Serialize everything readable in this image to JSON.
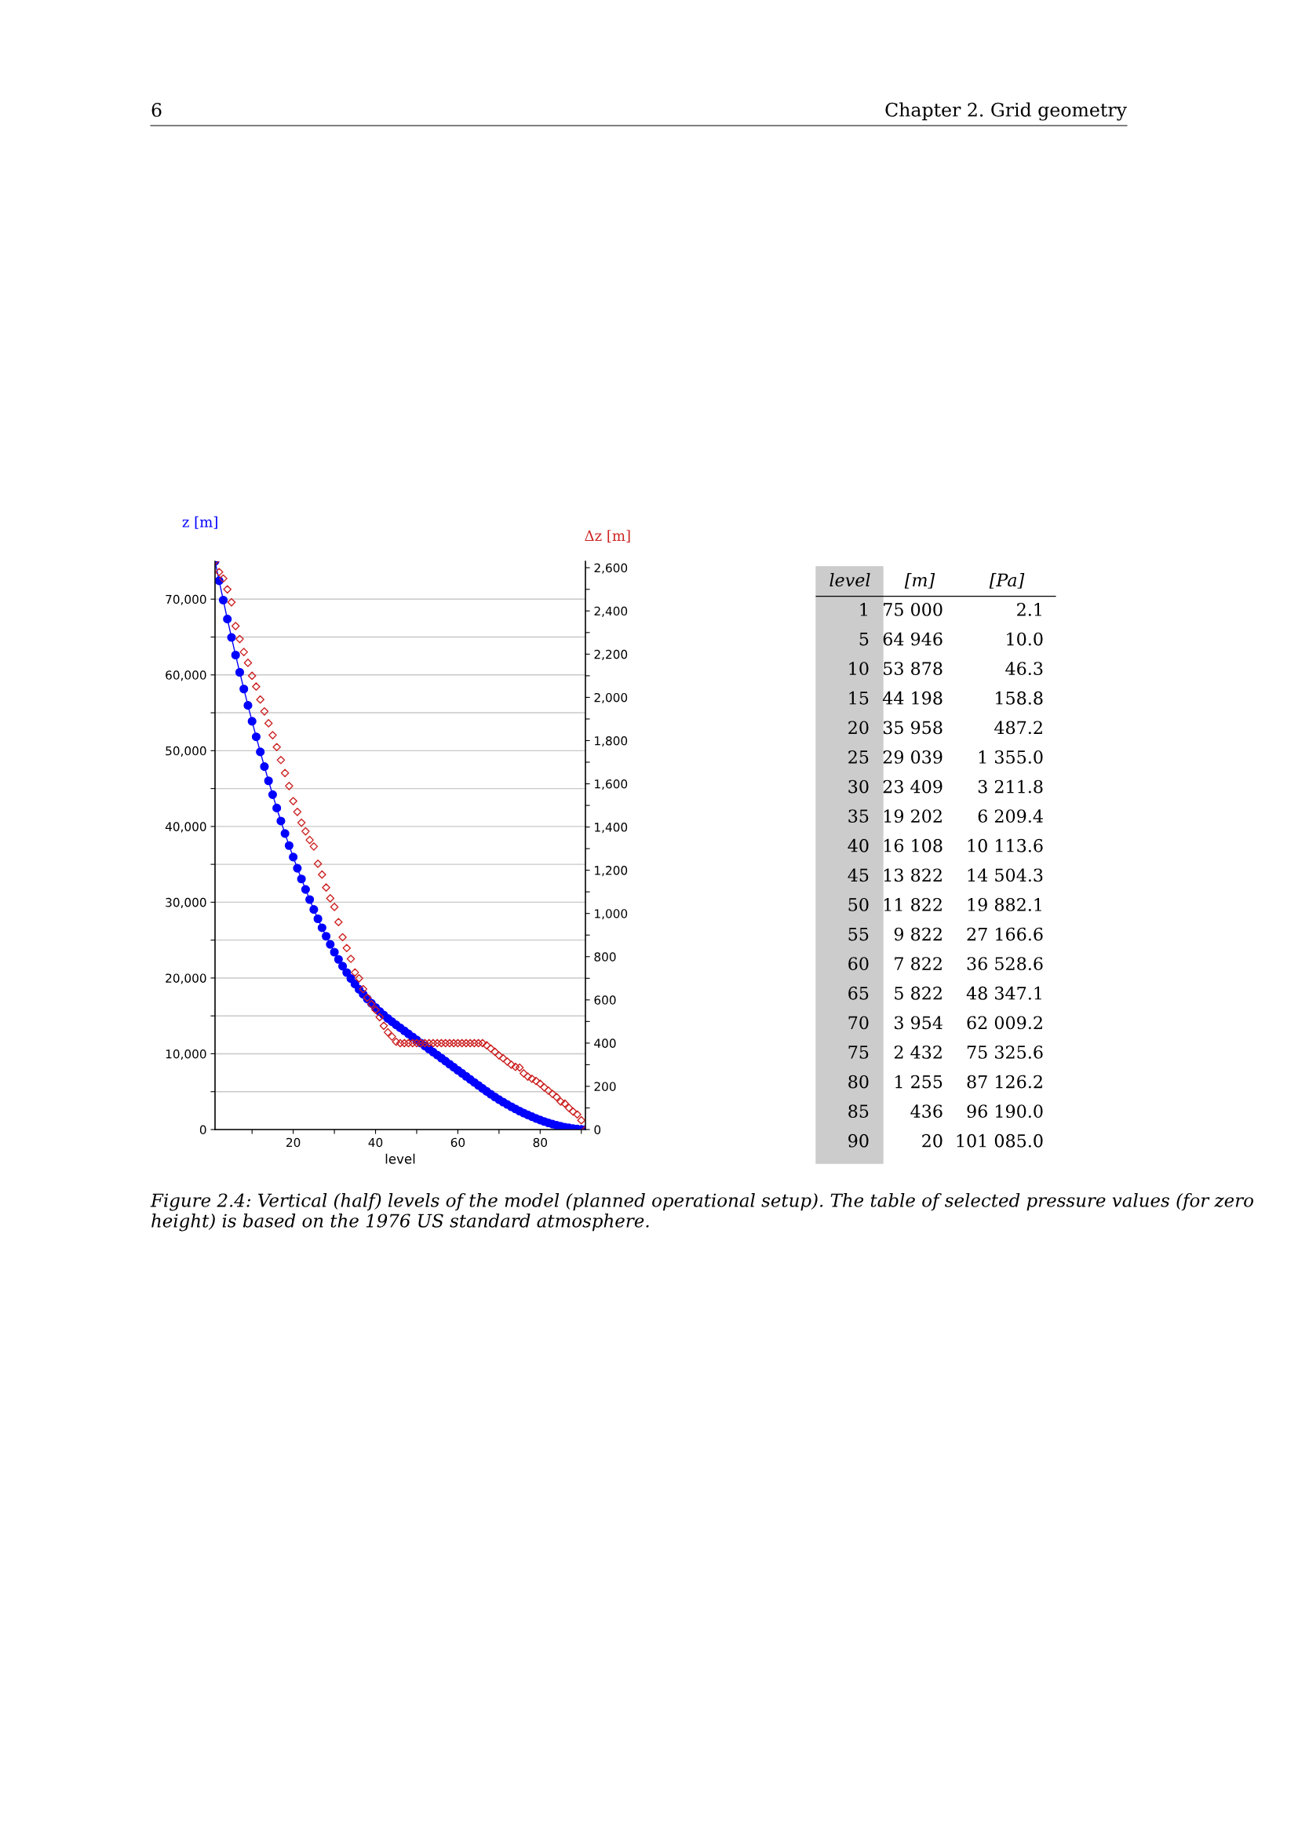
{
  "chart_data": {
    "type": "scatter",
    "xlabel": "level",
    "ylabel": "z [m]",
    "y2label": "Δz [m]",
    "series": [
      {
        "type": "line",
        "color": "#0000ff",
        "marker": "circle",
        "axis": "y",
        "x": [
          1,
          2,
          3,
          4,
          5,
          6,
          7,
          8,
          9,
          10,
          11,
          12,
          13,
          14,
          15,
          16,
          17,
          18,
          19,
          20,
          21,
          22,
          23,
          24,
          25,
          26,
          27,
          28,
          29,
          30,
          31,
          32,
          33,
          34,
          35,
          36,
          37,
          38,
          39,
          40,
          41,
          42,
          43,
          44,
          45,
          46,
          47,
          48,
          49,
          50,
          51,
          52,
          53,
          54,
          55,
          56,
          57,
          58,
          59,
          60,
          61,
          62,
          63,
          64,
          65,
          66,
          67,
          68,
          69,
          70,
          71,
          72,
          73,
          74,
          75,
          76,
          77,
          78,
          79,
          80,
          81,
          82,
          83,
          84,
          85,
          86,
          87,
          88,
          89,
          90,
          91
        ],
        "values": [
          75000,
          72420,
          69870,
          67370,
          64946,
          62616,
          60346,
          58136,
          55976,
          53878,
          51828,
          49838,
          47903,
          46023,
          44198,
          42428,
          40718,
          39068,
          37478,
          35958,
          34488,
          33068,
          31688,
          30348,
          29039,
          27809,
          26629,
          25509,
          24439,
          23409,
          22449,
          21559,
          20719,
          19929,
          19202,
          18502,
          17852,
          17242,
          16662,
          16108,
          15588,
          15108,
          14658,
          14228,
          13822,
          13422,
          13022,
          12622,
          12222,
          11822,
          11422,
          11022,
          10622,
          10222,
          9822,
          9422,
          9022,
          8622,
          8222,
          7822,
          7422,
          7022,
          6622,
          6222,
          5822,
          5422,
          5032,
          4657,
          4297,
          3954,
          3624,
          3309,
          3009,
          2719,
          2432,
          2172,
          1927,
          1692,
          1467,
          1255,
          1060,
          880,
          715,
          565,
          436,
          316,
          216,
          133,
          63,
          20,
          0
        ]
      },
      {
        "color": "#cc2222",
        "marker": "diamond",
        "axis": "y2",
        "x": [
          1,
          2,
          3,
          4,
          5,
          6,
          7,
          8,
          9,
          10,
          11,
          12,
          13,
          14,
          15,
          16,
          17,
          18,
          19,
          20,
          21,
          22,
          23,
          24,
          25,
          26,
          27,
          28,
          29,
          30,
          31,
          32,
          33,
          34,
          35,
          36,
          37,
          38,
          39,
          40,
          41,
          42,
          43,
          44,
          45,
          46,
          47,
          48,
          49,
          50,
          51,
          52,
          53,
          54,
          55,
          56,
          57,
          58,
          59,
          60,
          61,
          62,
          63,
          64,
          65,
          66,
          67,
          68,
          69,
          70,
          71,
          72,
          73,
          74,
          75,
          76,
          77,
          78,
          79,
          80,
          81,
          82,
          83,
          84,
          85,
          86,
          87,
          88,
          89,
          90,
          91
        ],
        "values": [
          2630,
          2580,
          2550,
          2500,
          2440,
          2330,
          2270,
          2210,
          2160,
          2100,
          2050,
          1990,
          1935,
          1880,
          1825,
          1770,
          1710,
          1650,
          1590,
          1520,
          1470,
          1420,
          1380,
          1340,
          1310,
          1230,
          1180,
          1120,
          1070,
          1030,
          960,
          890,
          840,
          790,
          727,
          700,
          650,
          610,
          580,
          554,
          520,
          480,
          450,
          430,
          406,
          400,
          400,
          400,
          400,
          400,
          400,
          400,
          400,
          400,
          400,
          400,
          400,
          400,
          400,
          400,
          400,
          400,
          400,
          400,
          400,
          400,
          390,
          375,
          360,
          343,
          330,
          315,
          300,
          290,
          287,
          260,
          245,
          235,
          225,
          212,
          195,
          180,
          165,
          150,
          129,
          120,
          100,
          83,
          70,
          43,
          0
        ]
      }
    ],
    "xlim": [
      1,
      91
    ],
    "xticks": [
      {
        "value": 10,
        "label": null
      },
      20,
      {
        "value": 30,
        "label": null
      },
      40,
      {
        "value": 50,
        "label": null
      },
      60,
      {
        "value": 70,
        "label": null
      },
      80,
      {
        "value": 90,
        "label": null
      }
    ],
    "ylim": [
      0,
      75000
    ],
    "yticks": [
      0,
      {
        "value": 5000,
        "label": null
      },
      {
        "value": 10000,
        "label": "10,000"
      },
      {
        "value": 15000,
        "label": null
      },
      {
        "value": 20000,
        "label": "20,000"
      },
      {
        "value": 25000,
        "label": null
      },
      {
        "value": 30000,
        "label": "30,000"
      },
      {
        "value": 35000,
        "label": null
      },
      {
        "value": 40000,
        "label": "40,000"
      },
      {
        "value": 45000,
        "label": null
      },
      {
        "value": 50000,
        "label": "50,000"
      },
      {
        "value": 55000,
        "label": null
      },
      {
        "value": 60000,
        "label": "60,000"
      },
      {
        "value": 65000,
        "label": null
      },
      {
        "value": 70000,
        "label": "70,000"
      }
    ],
    "y2lim": [
      0,
      2630
    ],
    "y2ticks": [
      0,
      {
        "value": 100,
        "label": null
      },
      200,
      {
        "value": 300,
        "label": null
      },
      400,
      {
        "value": 500,
        "label": null
      },
      600,
      {
        "value": 700,
        "label": null
      },
      800,
      {
        "value": 900,
        "label": null
      },
      {
        "value": 1000,
        "label": "1,000"
      },
      {
        "value": 1100,
        "label": null
      },
      {
        "value": 1200,
        "label": "1,200"
      },
      {
        "value": 1300,
        "label": null
      },
      {
        "value": 1400,
        "label": "1,400"
      },
      {
        "value": 1500,
        "label": null
      },
      {
        "value": 1600,
        "label": "1,600"
      },
      {
        "value": 1700,
        "label": null
      },
      {
        "value": 1800,
        "label": "1,800"
      },
      {
        "value": 1900,
        "label": null
      },
      {
        "value": 2000,
        "label": "2,000"
      },
      {
        "value": 2100,
        "label": null
      },
      {
        "value": 2200,
        "label": "2,200"
      },
      {
        "value": 2300,
        "label": null
      },
      {
        "value": 2400,
        "label": "2,400"
      },
      {
        "value": 2500,
        "label": null
      },
      {
        "value": 2600,
        "label": "2,600"
      }
    ],
    "grid": "y",
    "annotations": [
      "6",
      "Chapter 2. Grid geometry",
      "Figure 2.4: Vertical (half) levels of the model (planned operational setup). The table of selected pressure values (for zero height) is based on the 1976 US standard atmosphere.",
      "level",
      "[m]",
      "[Pa]",
      "1",
      "75 000",
      "2.1",
      "5",
      "64 946",
      "10.0",
      "10",
      "53 878",
      "46.3",
      "15",
      "44 198",
      "158.8",
      "20",
      "35 958",
      "487.2",
      "25",
      "29 039",
      "1 355.0",
      "30",
      "23 409",
      "3 211.8",
      "35",
      "19 202",
      "6 209.4",
      "40",
      "16 108",
      "10 113.6",
      "45",
      "13 822",
      "14 504.3",
      "50",
      "11 822",
      "19 882.1",
      "55",
      "9 822",
      "27 166.6",
      "60",
      "7 822",
      "36 528.6",
      "65",
      "5 822",
      "48 347.1",
      "70",
      "3 954",
      "62 009.2",
      "75",
      "2 432",
      "75 325.6",
      "80",
      "1 255",
      "87 126.2",
      "85",
      "436",
      "96 190.0",
      "90",
      "20",
      "101 085.0"
    ]
  }
}
